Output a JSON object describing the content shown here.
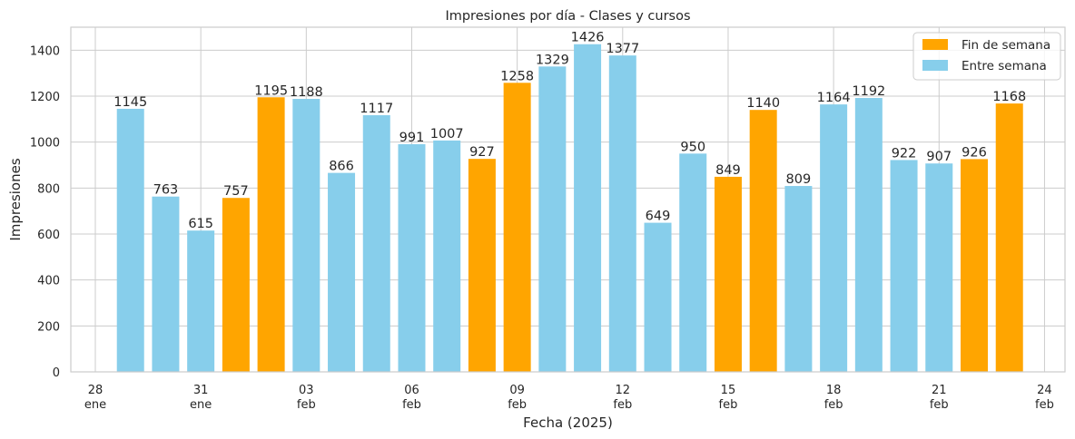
{
  "chart_data": {
    "type": "bar",
    "title": "Impresiones por día - Clases y cursos",
    "xlabel": "Fecha (2025)",
    "ylabel": "Impresiones",
    "ylim": [
      0,
      1500
    ],
    "yticks": [
      0,
      200,
      400,
      600,
      800,
      1000,
      1200,
      1400
    ],
    "grid": true,
    "legend_position": "top-right",
    "x_ticks": [
      {
        "line1": "28",
        "line2": "ene"
      },
      {
        "line1": "31",
        "line2": "ene"
      },
      {
        "line1": "03",
        "line2": "feb"
      },
      {
        "line1": "06",
        "line2": "feb"
      },
      {
        "line1": "09",
        "line2": "feb"
      },
      {
        "line1": "12",
        "line2": "feb"
      },
      {
        "line1": "15",
        "line2": "feb"
      },
      {
        "line1": "18",
        "line2": "feb"
      },
      {
        "line1": "21",
        "line2": "feb"
      },
      {
        "line1": "24",
        "line2": "feb"
      }
    ],
    "series": [
      {
        "name": "Fin de semana",
        "color": "#FFA500"
      },
      {
        "name": "Entre semana",
        "color": "#87CEEB"
      }
    ],
    "bars": [
      {
        "date": "2025-01-29",
        "value": 1145,
        "series": 1
      },
      {
        "date": "2025-01-30",
        "value": 763,
        "series": 1
      },
      {
        "date": "2025-01-31",
        "value": 615,
        "series": 1
      },
      {
        "date": "2025-02-01",
        "value": 757,
        "series": 0
      },
      {
        "date": "2025-02-02",
        "value": 1195,
        "series": 0
      },
      {
        "date": "2025-02-03",
        "value": 1188,
        "series": 1
      },
      {
        "date": "2025-02-04",
        "value": 866,
        "series": 1
      },
      {
        "date": "2025-02-05",
        "value": 1117,
        "series": 1
      },
      {
        "date": "2025-02-06",
        "value": 991,
        "series": 1
      },
      {
        "date": "2025-02-07",
        "value": 1007,
        "series": 1
      },
      {
        "date": "2025-02-08",
        "value": 927,
        "series": 0
      },
      {
        "date": "2025-02-09",
        "value": 1258,
        "series": 0
      },
      {
        "date": "2025-02-10",
        "value": 1329,
        "series": 1
      },
      {
        "date": "2025-02-11",
        "value": 1426,
        "series": 1
      },
      {
        "date": "2025-02-12",
        "value": 1377,
        "series": 1
      },
      {
        "date": "2025-02-13",
        "value": 649,
        "series": 1
      },
      {
        "date": "2025-02-14",
        "value": 950,
        "series": 1
      },
      {
        "date": "2025-02-15",
        "value": 849,
        "series": 0
      },
      {
        "date": "2025-02-16",
        "value": 1140,
        "series": 0
      },
      {
        "date": "2025-02-17",
        "value": 809,
        "series": 1
      },
      {
        "date": "2025-02-18",
        "value": 1164,
        "series": 1
      },
      {
        "date": "2025-02-19",
        "value": 1192,
        "series": 1
      },
      {
        "date": "2025-02-20",
        "value": 922,
        "series": 1
      },
      {
        "date": "2025-02-21",
        "value": 907,
        "series": 1
      },
      {
        "date": "2025-02-22",
        "value": 926,
        "series": 0
      },
      {
        "date": "2025-02-23",
        "value": 1168,
        "series": 0
      }
    ]
  }
}
